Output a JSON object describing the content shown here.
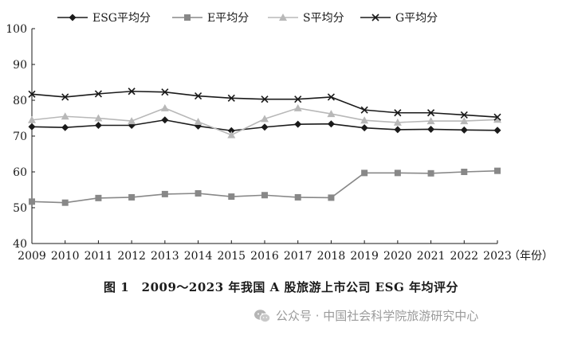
{
  "chart_data": {
    "type": "line",
    "title": "",
    "xlabel": "",
    "ylabel": "",
    "x_unit_label": "（年份）",
    "x": [
      "2009",
      "2010",
      "2011",
      "2012",
      "2013",
      "2014",
      "2015",
      "2016",
      "2017",
      "2018",
      "2019",
      "2020",
      "2021",
      "2022",
      "2023"
    ],
    "ylim": [
      40,
      100
    ],
    "yticks": [
      "40",
      "50",
      "60",
      "70",
      "80",
      "90",
      "100"
    ],
    "grid": false,
    "legend_position": "top",
    "series": [
      {
        "name": "ESG平均分",
        "marker": "diamond",
        "color": "#1a1a1a",
        "values": [
          72.6,
          72.4,
          73.0,
          73.0,
          74.5,
          72.8,
          71.5,
          72.5,
          73.3,
          73.4,
          72.3,
          71.8,
          71.9,
          71.7,
          71.6
        ]
      },
      {
        "name": "E平均分",
        "marker": "square",
        "color": "#888888",
        "values": [
          51.7,
          51.4,
          52.7,
          52.9,
          53.8,
          54.0,
          53.1,
          53.5,
          52.9,
          52.8,
          59.7,
          59.7,
          59.6,
          60.0,
          60.3
        ]
      },
      {
        "name": "S平均分",
        "marker": "triangle",
        "color": "#b8b8b8",
        "values": [
          74.5,
          75.5,
          75.0,
          74.2,
          77.8,
          74.0,
          70.3,
          74.8,
          77.8,
          76.2,
          74.4,
          73.8,
          74.2,
          74.2,
          74.6
        ]
      },
      {
        "name": "G平均分",
        "marker": "x",
        "color": "#1a1a1a",
        "values": [
          81.7,
          80.9,
          81.8,
          82.5,
          82.3,
          81.2,
          80.6,
          80.3,
          80.3,
          80.9,
          77.3,
          76.5,
          76.5,
          75.9,
          75.3
        ]
      }
    ]
  },
  "caption": "图 1　2009～2023 年我国 A 股旅游上市公司 ESG 年均评分",
  "watermark": {
    "icon": "wechat-icon",
    "text": "公众号 · 中国社会科学院旅游研究中心"
  }
}
